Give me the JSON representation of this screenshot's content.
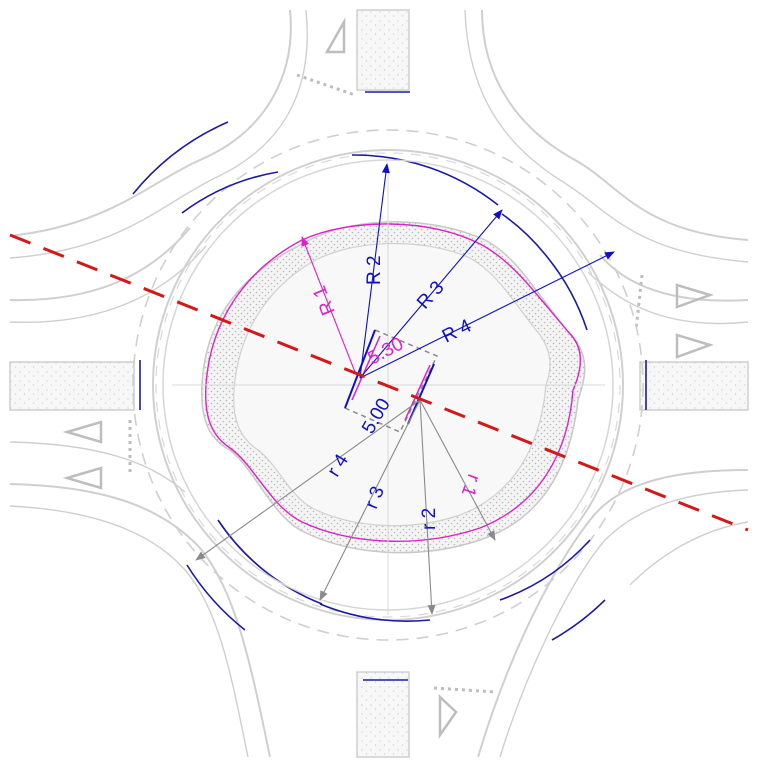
{
  "colors": {
    "background": "#ffffff",
    "road_edge": "#cfcfcf",
    "curb_blue": "#1a1aa6",
    "dimension_blue": "#1010c8",
    "dimension_grey": "#8a8a8a",
    "magenta": "#e020c8",
    "axis_red": "#d41818",
    "hatch": "#c4c4c4",
    "island_fill": "#f5f5f5"
  },
  "diagram": {
    "dimensions": {
      "R1": "R 1",
      "R2": "R 2",
      "R3": "R 3",
      "R4": "R 4",
      "r1": "r 1",
      "r2": "r 2",
      "r3": "r 3",
      "r4": "r 4",
      "offset_a": "5.30",
      "offset_b": "5.00"
    }
  }
}
